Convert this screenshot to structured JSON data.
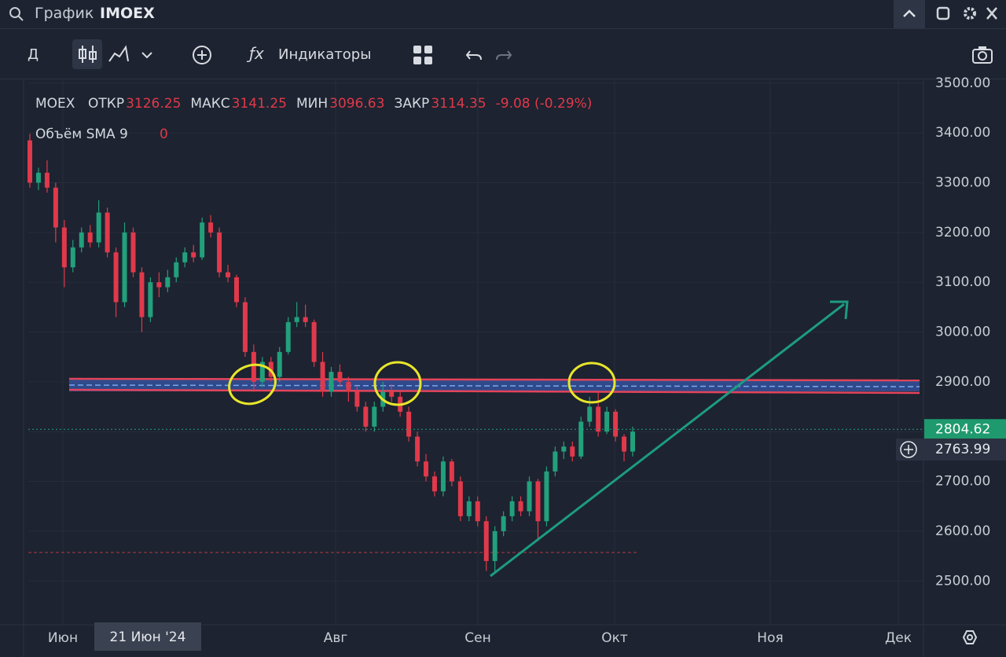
{
  "header": {
    "search_label": "График",
    "ticker": "IMOEX"
  },
  "toolbar": {
    "interval": "Д",
    "indicators": "Индикаторы"
  },
  "legend": {
    "symbol": "MOEX",
    "items": [
      {
        "label": "ОТКР",
        "value": "3126.25"
      },
      {
        "label": "МАКС",
        "value": "3141.25"
      },
      {
        "label": "МИН",
        "value": "3096.63"
      },
      {
        "label": "ЗАКР",
        "value": "3114.35"
      }
    ],
    "change": "-9.08 (-0.29%)"
  },
  "volume_legend": {
    "label": "Объём SMA 9",
    "value": "0"
  },
  "x_axis": {
    "labels": [
      "Июн",
      "Авг",
      "Сен",
      "Окт",
      "Ноя",
      "Дек"
    ],
    "crosshair_date": "21 Июн '24"
  },
  "chart": {
    "type": "candlestick",
    "up_color": "#22a07c",
    "down_color": "#e0394b",
    "ylim": [
      2412,
      3517
    ],
    "yticks": [
      {
        "value": 2500,
        "label": "2500.00"
      },
      {
        "value": 2600,
        "label": "2600.00"
      },
      {
        "value": 2700,
        "label": "2700.00"
      },
      {
        "value": 2800,
        "label": "2800.00"
      },
      {
        "value": 2900,
        "label": "2900.00"
      },
      {
        "value": 3000,
        "label": "3000.00"
      },
      {
        "value": 3100,
        "label": "3100.00"
      },
      {
        "value": 3200,
        "label": "3200.00"
      },
      {
        "value": 3300,
        "label": "3300.00"
      },
      {
        "value": 3400,
        "label": "3400.00"
      },
      {
        "value": 3500,
        "label": "3500.00"
      }
    ],
    "grid": true,
    "last_price": 2804.62,
    "cursor_price": 2763.99,
    "candles": [
      [
        3385,
        3398,
        3290,
        3300
      ],
      [
        3300,
        3330,
        3285,
        3320
      ],
      [
        3320,
        3345,
        3280,
        3290
      ],
      [
        3290,
        3300,
        3180,
        3210
      ],
      [
        3210,
        3225,
        3090,
        3130
      ],
      [
        3130,
        3185,
        3120,
        3170
      ],
      [
        3170,
        3210,
        3160,
        3200
      ],
      [
        3200,
        3215,
        3170,
        3180
      ],
      [
        3180,
        3265,
        3170,
        3240
      ],
      [
        3240,
        3250,
        3150,
        3160
      ],
      [
        3160,
        3170,
        3030,
        3060
      ],
      [
        3060,
        3220,
        3050,
        3200
      ],
      [
        3200,
        3210,
        3110,
        3120
      ],
      [
        3120,
        3130,
        3000,
        3030
      ],
      [
        3030,
        3110,
        3020,
        3100
      ],
      [
        3100,
        3120,
        3070,
        3090
      ],
      [
        3090,
        3125,
        3080,
        3110
      ],
      [
        3110,
        3150,
        3100,
        3140
      ],
      [
        3140,
        3170,
        3130,
        3160
      ],
      [
        3160,
        3175,
        3140,
        3150
      ],
      [
        3150,
        3230,
        3145,
        3220
      ],
      [
        3220,
        3235,
        3190,
        3200
      ],
      [
        3200,
        3210,
        3110,
        3120
      ],
      [
        3120,
        3135,
        3100,
        3110
      ],
      [
        3110,
        3115,
        3050,
        3060
      ],
      [
        3060,
        3070,
        2950,
        2960
      ],
      [
        2960,
        2975,
        2880,
        2900
      ],
      [
        2900,
        2950,
        2890,
        2940
      ],
      [
        2940,
        2950,
        2900,
        2910
      ],
      [
        2910,
        2970,
        2900,
        2960
      ],
      [
        2960,
        3030,
        2955,
        3020
      ],
      [
        3020,
        3060,
        3010,
        3030
      ],
      [
        3030,
        3055,
        3010,
        3020
      ],
      [
        3020,
        3025,
        2930,
        2940
      ],
      [
        2940,
        2960,
        2870,
        2880
      ],
      [
        2880,
        2930,
        2870,
        2920
      ],
      [
        2920,
        2935,
        2890,
        2900
      ],
      [
        2900,
        2910,
        2860,
        2880
      ],
      [
        2880,
        2890,
        2840,
        2850
      ],
      [
        2850,
        2860,
        2800,
        2810
      ],
      [
        2810,
        2860,
        2800,
        2850
      ],
      [
        2850,
        2900,
        2840,
        2880
      ],
      [
        2880,
        2895,
        2860,
        2870
      ],
      [
        2870,
        2880,
        2830,
        2840
      ],
      [
        2840,
        2850,
        2780,
        2790
      ],
      [
        2790,
        2800,
        2730,
        2740
      ],
      [
        2740,
        2755,
        2700,
        2710
      ],
      [
        2710,
        2720,
        2670,
        2680
      ],
      [
        2680,
        2750,
        2670,
        2740
      ],
      [
        2740,
        2745,
        2690,
        2700
      ],
      [
        2700,
        2710,
        2620,
        2630
      ],
      [
        2630,
        2670,
        2620,
        2660
      ],
      [
        2660,
        2670,
        2610,
        2620
      ],
      [
        2620,
        2630,
        2520,
        2540
      ],
      [
        2540,
        2610,
        2515,
        2600
      ],
      [
        2600,
        2640,
        2590,
        2630
      ],
      [
        2630,
        2670,
        2620,
        2660
      ],
      [
        2660,
        2670,
        2630,
        2640
      ],
      [
        2640,
        2710,
        2630,
        2700
      ],
      [
        2700,
        2705,
        2580,
        2620
      ],
      [
        2620,
        2730,
        2610,
        2720
      ],
      [
        2720,
        2770,
        2710,
        2760
      ],
      [
        2760,
        2780,
        2745,
        2770
      ],
      [
        2770,
        2780,
        2740,
        2750
      ],
      [
        2750,
        2830,
        2745,
        2820
      ],
      [
        2820,
        2870,
        2810,
        2850
      ],
      [
        2850,
        2880,
        2790,
        2800
      ],
      [
        2800,
        2850,
        2795,
        2840
      ],
      [
        2840,
        2845,
        2780,
        2790
      ],
      [
        2790,
        2795,
        2740,
        2760
      ],
      [
        2760,
        2810,
        2750,
        2800
      ]
    ]
  }
}
